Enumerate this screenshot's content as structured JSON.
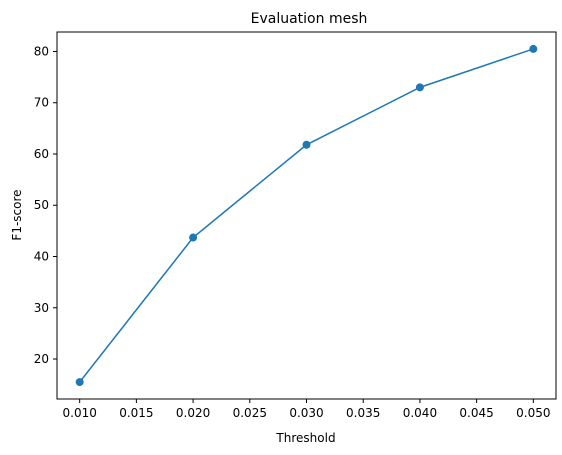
{
  "chart_data": {
    "type": "line",
    "title": "Evaluation mesh",
    "xlabel": "Threshold",
    "ylabel": "F1-score",
    "x": [
      0.01,
      0.02,
      0.03,
      0.04,
      0.05
    ],
    "series": [
      {
        "values": [
          15.5,
          43.7,
          61.8,
          73.0,
          80.5
        ],
        "color": "#1f77b4",
        "marker": "circle"
      }
    ],
    "xlim": [
      0.008,
      0.052
    ],
    "ylim": [
      12.2,
      83.8
    ],
    "xticks": [
      0.01,
      0.015,
      0.02,
      0.025,
      0.03,
      0.035,
      0.04,
      0.045,
      0.05
    ],
    "xtick_labels": [
      "0.010",
      "0.015",
      "0.020",
      "0.025",
      "0.030",
      "0.035",
      "0.040",
      "0.045",
      "0.050"
    ],
    "yticks": [
      20,
      30,
      40,
      50,
      60,
      70,
      80
    ],
    "ytick_labels": [
      "20",
      "30",
      "40",
      "50",
      "60",
      "70",
      "80"
    ],
    "grid": false,
    "legend": "none"
  }
}
